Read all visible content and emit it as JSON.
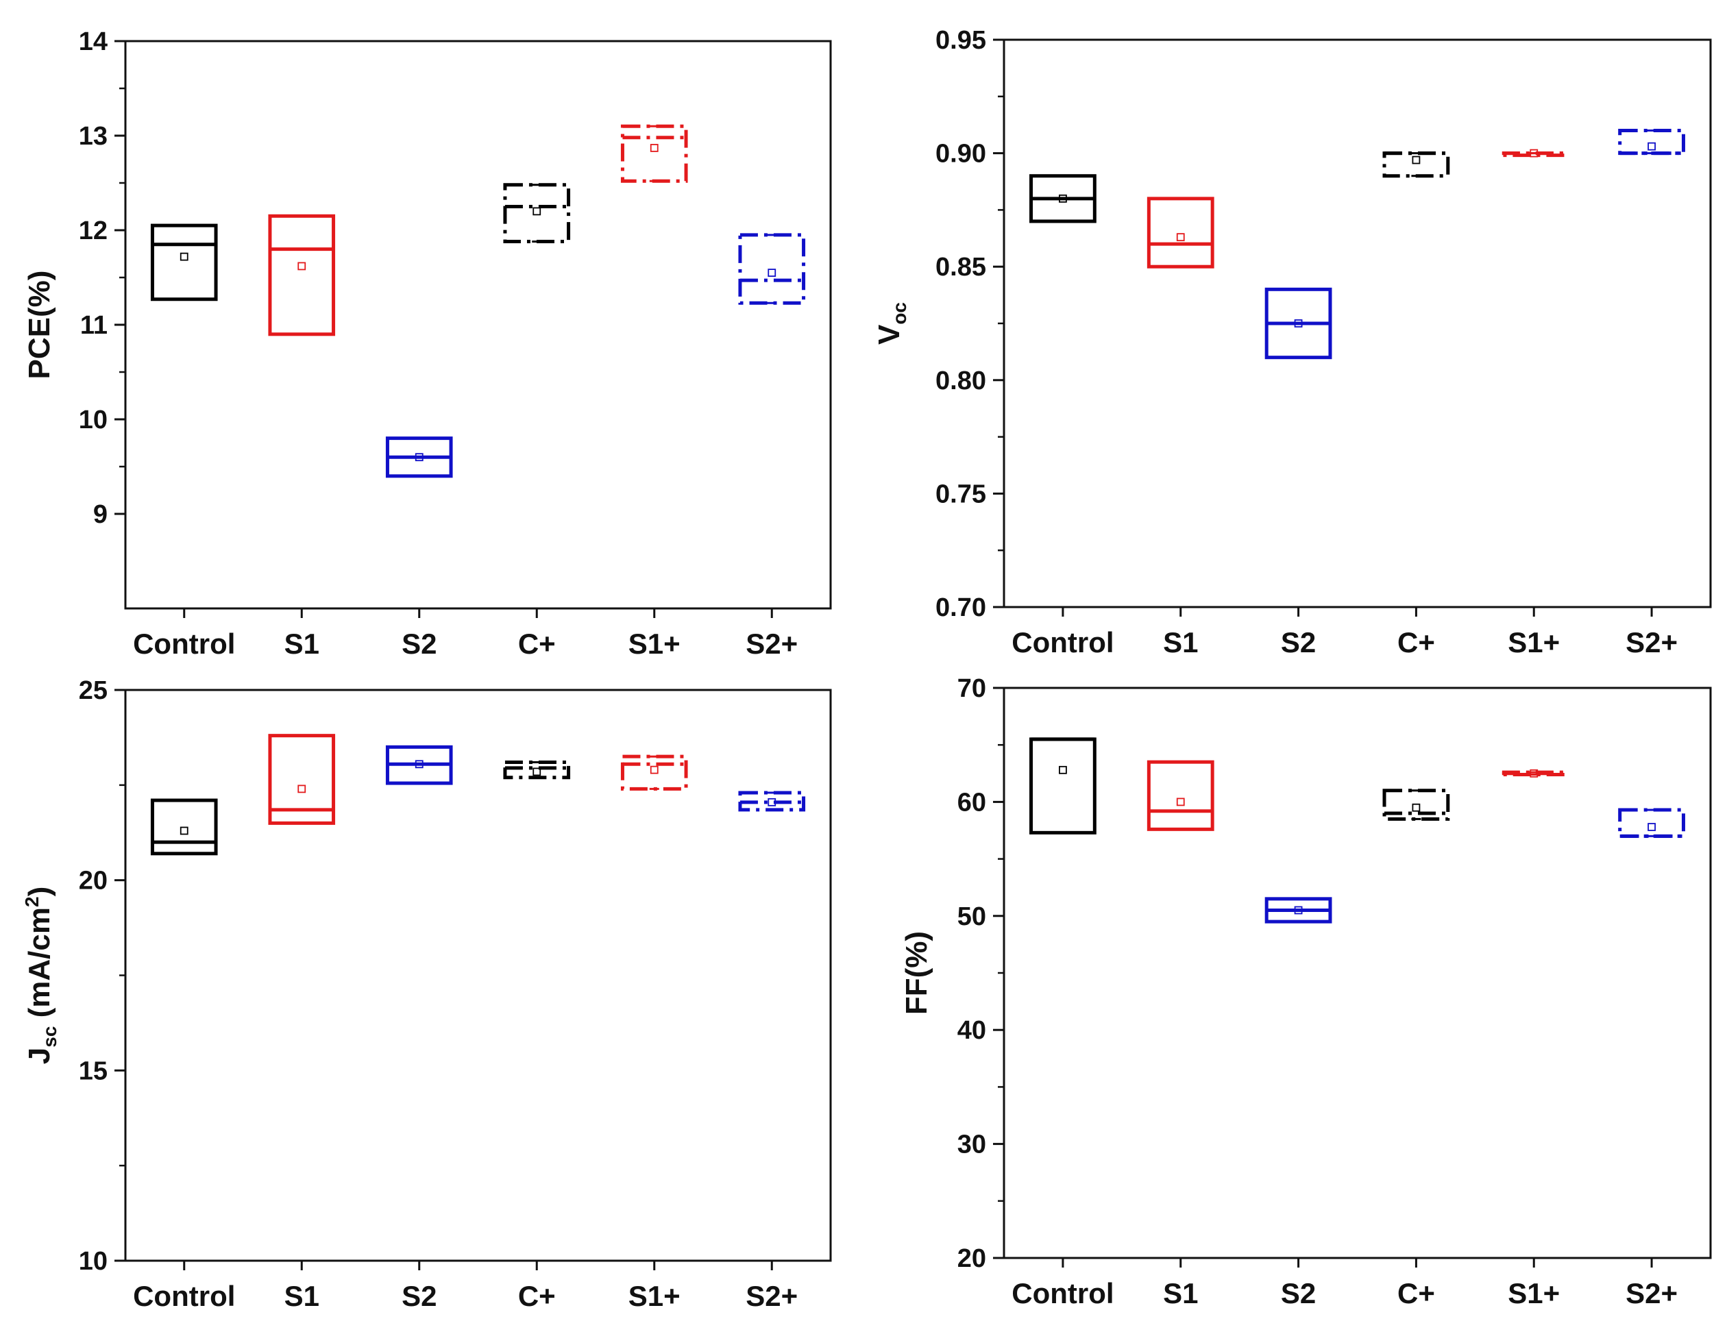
{
  "chart_data": [
    {
      "id": "pce",
      "type": "box",
      "ylabel_main": "PCE(%)",
      "ylabel_sub": "",
      "ylabel_after": "",
      "ylabel_sup": "",
      "ylim": [
        8,
        14
      ],
      "yticks": [
        9,
        10,
        11,
        12,
        13,
        14
      ],
      "ytick_labels": [
        "9",
        "10",
        "11",
        "12",
        "13",
        "14"
      ],
      "categories": [
        "Control",
        "S1",
        "S2",
        "C+",
        "S1+",
        "S2+"
      ],
      "boxes": [
        {
          "q1": 11.27,
          "median": 11.85,
          "q3": 12.05,
          "mean": 11.72,
          "min": 11.27,
          "max": 12.05,
          "color": "#000000",
          "style": "solid"
        },
        {
          "q1": 10.9,
          "median": 11.8,
          "q3": 12.15,
          "mean": 11.62,
          "min": 10.9,
          "max": 12.15,
          "color": "#e31a1c",
          "style": "solid"
        },
        {
          "q1": 9.4,
          "median": 9.6,
          "q3": 9.8,
          "mean": 9.6,
          "min": 9.4,
          "max": 9.8,
          "color": "#1010c8",
          "style": "solid"
        },
        {
          "q1": 11.88,
          "median": 12.25,
          "q3": 12.48,
          "mean": 12.2,
          "min": 11.88,
          "max": 12.48,
          "color": "#000000",
          "style": "dashdot"
        },
        {
          "q1": 12.52,
          "median": 12.98,
          "q3": 13.1,
          "mean": 12.87,
          "min": 12.52,
          "max": 13.1,
          "color": "#e31a1c",
          "style": "dashdot"
        },
        {
          "q1": 11.23,
          "median": 11.47,
          "q3": 11.95,
          "mean": 11.55,
          "min": 11.23,
          "max": 11.95,
          "color": "#1010c8",
          "style": "dashdot"
        }
      ]
    },
    {
      "id": "voc",
      "type": "box",
      "ylabel_main": "V",
      "ylabel_sub": "oc",
      "ylabel_after": "",
      "ylabel_sup": "",
      "ylim": [
        0.7,
        0.95
      ],
      "yticks": [
        0.7,
        0.75,
        0.8,
        0.85,
        0.9,
        0.95
      ],
      "ytick_labels": [
        "0.70",
        "0.75",
        "0.80",
        "0.85",
        "0.90",
        "0.95"
      ],
      "categories": [
        "Control",
        "S1",
        "S2",
        "C+",
        "S1+",
        "S2+"
      ],
      "boxes": [
        {
          "q1": 0.87,
          "median": 0.88,
          "q3": 0.89,
          "mean": 0.88,
          "min": 0.87,
          "max": 0.89,
          "color": "#000000",
          "style": "solid"
        },
        {
          "q1": 0.85,
          "median": 0.86,
          "q3": 0.88,
          "mean": 0.863,
          "min": 0.85,
          "max": 0.88,
          "color": "#e31a1c",
          "style": "solid"
        },
        {
          "q1": 0.81,
          "median": 0.825,
          "q3": 0.84,
          "mean": 0.825,
          "min": 0.81,
          "max": 0.84,
          "color": "#1010c8",
          "style": "solid"
        },
        {
          "q1": 0.89,
          "median": 0.9,
          "q3": 0.9,
          "mean": 0.897,
          "min": 0.89,
          "max": 0.9,
          "color": "#000000",
          "style": "dashdot"
        },
        {
          "q1": 0.9,
          "median": 0.9,
          "q3": 0.9,
          "mean": 0.9,
          "min": 0.9,
          "max": 0.9,
          "color": "#e31a1c",
          "style": "dashdot"
        },
        {
          "q1": 0.9,
          "median": 0.9,
          "q3": 0.91,
          "mean": 0.903,
          "min": 0.9,
          "max": 0.91,
          "color": "#1010c8",
          "style": "dashdot"
        }
      ]
    },
    {
      "id": "jsc",
      "type": "box",
      "ylabel_main": "J",
      "ylabel_sub": "sc",
      "ylabel_after": " (mA/cm",
      "ylabel_sup": "2",
      "ylabel_close": ")",
      "ylim": [
        10,
        25
      ],
      "yticks": [
        10,
        15,
        20,
        25
      ],
      "ytick_labels": [
        "10",
        "15",
        "20",
        "25"
      ],
      "categories": [
        "Control",
        "S1",
        "S2",
        "C+",
        "S1+",
        "S2+"
      ],
      "boxes": [
        {
          "q1": 20.7,
          "median": 21.0,
          "q3": 22.1,
          "mean": 21.3,
          "min": 20.7,
          "max": 22.1,
          "color": "#000000",
          "style": "solid"
        },
        {
          "q1": 21.5,
          "median": 21.85,
          "q3": 23.8,
          "mean": 22.4,
          "min": 21.5,
          "max": 23.8,
          "color": "#e31a1c",
          "style": "solid"
        },
        {
          "q1": 22.55,
          "median": 23.05,
          "q3": 23.5,
          "mean": 23.05,
          "min": 22.55,
          "max": 23.5,
          "color": "#1010c8",
          "style": "solid"
        },
        {
          "q1": 22.7,
          "median": 22.95,
          "q3": 23.1,
          "mean": 22.85,
          "min": 22.7,
          "max": 23.1,
          "color": "#000000",
          "style": "dashdot"
        },
        {
          "q1": 22.4,
          "median": 23.05,
          "q3": 23.25,
          "mean": 22.9,
          "min": 22.4,
          "max": 23.25,
          "color": "#e31a1c",
          "style": "dashdot"
        },
        {
          "q1": 21.85,
          "median": 22.05,
          "q3": 22.3,
          "mean": 22.05,
          "min": 21.85,
          "max": 22.3,
          "color": "#1010c8",
          "style": "dashdot"
        }
      ]
    },
    {
      "id": "ff",
      "type": "box",
      "ylabel_main": "FF(%)",
      "ylabel_sub": "",
      "ylabel_after": "",
      "ylabel_sup": "",
      "ylim": [
        20,
        70
      ],
      "yticks": [
        20,
        30,
        40,
        50,
        60,
        70
      ],
      "ytick_labels": [
        "20",
        "30",
        "40",
        "50",
        "60",
        "70"
      ],
      "categories": [
        "Control",
        "S1",
        "S2",
        "C+",
        "S1+",
        "S2+"
      ],
      "boxes": [
        {
          "q1": 57.3,
          "median": 65.5,
          "q3": 65.5,
          "mean": 62.8,
          "min": 57.3,
          "max": 65.5,
          "color": "#000000",
          "style": "solid"
        },
        {
          "q1": 57.6,
          "median": 59.2,
          "q3": 63.5,
          "mean": 60.0,
          "min": 57.6,
          "max": 63.5,
          "color": "#e31a1c",
          "style": "solid"
        },
        {
          "q1": 49.5,
          "median": 50.5,
          "q3": 51.5,
          "mean": 50.5,
          "min": 49.5,
          "max": 51.5,
          "color": "#1010c8",
          "style": "solid"
        },
        {
          "q1": 58.5,
          "median": 59.0,
          "q3": 61.0,
          "mean": 59.5,
          "min": 58.5,
          "max": 61.0,
          "color": "#000000",
          "style": "dashdot"
        },
        {
          "q1": 62.4,
          "median": 62.5,
          "q3": 62.6,
          "mean": 62.5,
          "min": 62.4,
          "max": 62.6,
          "color": "#e31a1c",
          "style": "dashdot"
        },
        {
          "q1": 57.0,
          "median": 57.0,
          "q3": 59.3,
          "mean": 57.8,
          "min": 57.0,
          "max": 59.3,
          "color": "#1010c8",
          "style": "dashdot"
        }
      ]
    }
  ]
}
